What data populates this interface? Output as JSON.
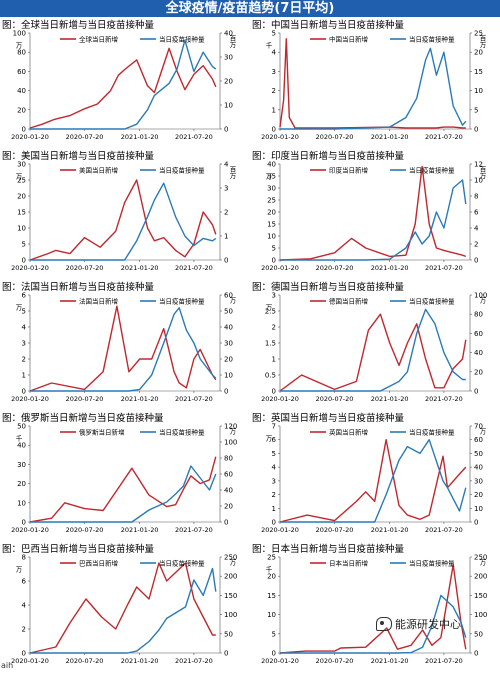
{
  "header": {
    "title": "全球疫情/疫苗趋势(7日平均)"
  },
  "footer": {
    "text": "aih"
  },
  "watermark": {
    "text": "能源研发中心"
  },
  "colors": {
    "cases": "#c0282e",
    "vaccine": "#2a7ab8",
    "banner": "#1f5fae"
  },
  "x_ticks": [
    "2020-01-20",
    "2020-07-20",
    "2021-01-20",
    "2021-07-20"
  ],
  "chart_data": [
    {
      "type": "line",
      "title": "图：全球当日新增与当日疫苗接种量",
      "left_unit": "万",
      "right_unit": "百万",
      "ylim_left": [
        0,
        100
      ],
      "yticks_left": [
        0,
        20,
        40,
        60,
        80,
        100
      ],
      "ylim_right": [
        0,
        40
      ],
      "yticks_right": [
        0,
        10,
        20,
        30,
        40
      ],
      "x": [
        "2020-01-20",
        "2020-03-01",
        "2020-04-10",
        "2020-06-01",
        "2020-07-20",
        "2020-09-01",
        "2020-10-15",
        "2020-11-10",
        "2020-12-01",
        "2021-01-10",
        "2021-02-15",
        "2021-03-10",
        "2021-04-28",
        "2021-05-25",
        "2021-06-20",
        "2021-07-20",
        "2021-08-20",
        "2021-09-20",
        "2021-10-01"
      ],
      "series": [
        {
          "name": "全球当日新增",
          "axis": "left",
          "color": "#c0282e",
          "values": [
            1,
            5,
            10,
            14,
            21,
            26,
            40,
            56,
            62,
            72,
            45,
            38,
            84,
            60,
            41,
            57,
            66,
            52,
            44
          ]
        },
        {
          "name": "当日疫苗接种量",
          "axis": "right",
          "color": "#2a7ab8",
          "values": [
            0,
            0,
            0,
            0,
            0,
            0,
            0,
            0,
            0,
            2,
            8,
            14,
            19,
            25,
            37,
            24,
            32,
            26,
            25
          ]
        }
      ]
    },
    {
      "type": "line",
      "title": "图：中国当日新增与当日疫苗接种量",
      "left_unit": "千",
      "right_unit": "百万",
      "ylim_left": [
        0,
        5
      ],
      "yticks_left": [
        0,
        1,
        2,
        3,
        4,
        5
      ],
      "ylim_right": [
        0,
        25
      ],
      "yticks_right": [
        0,
        5,
        10,
        15,
        20,
        25
      ],
      "x": [
        "2020-01-20",
        "2020-02-01",
        "2020-02-10",
        "2020-02-20",
        "2020-03-10",
        "2020-07-20",
        "2021-01-20",
        "2021-03-15",
        "2021-04-20",
        "2021-05-20",
        "2021-06-05",
        "2021-06-25",
        "2021-07-20",
        "2021-08-20",
        "2021-09-20",
        "2021-10-01"
      ],
      "series": [
        {
          "name": "中国当日新增",
          "axis": "left",
          "color": "#c0282e",
          "values": [
            0.1,
            1.5,
            4.7,
            0.6,
            0.05,
            0.05,
            0.1,
            0.05,
            0.05,
            0.05,
            0.05,
            0.05,
            0.1,
            0.1,
            0.05,
            0.05
          ]
        },
        {
          "name": "当日疫苗接种量",
          "axis": "right",
          "color": "#2a7ab8",
          "values": [
            0,
            0,
            0,
            0,
            0,
            0,
            0.5,
            3,
            8,
            18,
            21,
            14,
            20,
            6,
            1,
            2
          ]
        }
      ]
    },
    {
      "type": "line",
      "title": "图：美国当日新增与当日疫苗接种量",
      "left_unit": "万",
      "right_unit": "百万",
      "ylim_left": [
        0,
        30
      ],
      "yticks_left": [
        0,
        5,
        10,
        15,
        20,
        25,
        30
      ],
      "ylim_right": [
        0,
        4
      ],
      "yticks_right": [
        0,
        1,
        2,
        3,
        4
      ],
      "x": [
        "2020-01-20",
        "2020-03-20",
        "2020-04-15",
        "2020-06-01",
        "2020-07-20",
        "2020-09-10",
        "2020-11-01",
        "2020-12-01",
        "2021-01-10",
        "2021-02-15",
        "2021-03-10",
        "2021-04-10",
        "2021-05-20",
        "2021-06-20",
        "2021-07-20",
        "2021-08-20",
        "2021-09-20",
        "2021-10-01"
      ],
      "series": [
        {
          "name": "美国当日新增",
          "axis": "left",
          "color": "#c0282e",
          "values": [
            0,
            2,
            3,
            2,
            7,
            4,
            9,
            18,
            25,
            10,
            6,
            7,
            3,
            1,
            5,
            15,
            11,
            8
          ]
        },
        {
          "name": "当日疫苗接种量",
          "axis": "right",
          "color": "#2a7ab8",
          "values": [
            0,
            0,
            0,
            0,
            0,
            0,
            0,
            0,
            0.8,
            1.8,
            2.5,
            3.2,
            1.8,
            1,
            0.6,
            0.9,
            0.8,
            0.9
          ]
        }
      ]
    },
    {
      "type": "line",
      "title": "图：印度当日新增与当日疫苗接种量",
      "left_unit": "万",
      "right_unit": "百万",
      "ylim_left": [
        0,
        40
      ],
      "yticks_left": [
        0,
        5,
        10,
        15,
        20,
        25,
        30,
        35,
        40
      ],
      "ylim_right": [
        0,
        12
      ],
      "yticks_right": [
        0,
        2,
        4,
        6,
        8,
        10,
        12
      ],
      "x": [
        "2020-01-20",
        "2020-05-01",
        "2020-07-20",
        "2020-09-15",
        "2020-11-01",
        "2021-01-20",
        "2021-03-15",
        "2021-04-15",
        "2021-05-08",
        "2021-06-01",
        "2021-06-25",
        "2021-07-20",
        "2021-08-20",
        "2021-09-20",
        "2021-10-01"
      ],
      "series": [
        {
          "name": "印度当日新增",
          "axis": "left",
          "color": "#c0282e",
          "values": [
            0,
            0.5,
            3,
            9,
            5,
            1.5,
            2,
            15,
            39,
            15,
            5,
            4,
            3,
            2,
            1.5
          ]
        },
        {
          "name": "当日疫苗接种量",
          "axis": "right",
          "color": "#2a7ab8",
          "values": [
            0,
            0,
            0,
            0,
            0,
            0.1,
            1.5,
            3.5,
            2,
            3,
            6,
            4,
            9,
            10,
            7
          ]
        }
      ]
    },
    {
      "type": "line",
      "title": "图：法国当日新增与当日疫苗接种量",
      "left_unit": "万",
      "right_unit": "万",
      "ylim_left": [
        0,
        6
      ],
      "yticks_left": [
        0,
        1,
        2,
        3,
        4,
        5,
        6
      ],
      "ylim_right": [
        0,
        60
      ],
      "yticks_right": [
        0,
        10,
        20,
        30,
        40,
        50,
        60
      ],
      "x": [
        "2020-01-20",
        "2020-04-01",
        "2020-07-20",
        "2020-09-20",
        "2020-11-05",
        "2020-12-15",
        "2021-01-20",
        "2021-03-01",
        "2021-04-10",
        "2021-05-15",
        "2021-06-01",
        "2021-06-25",
        "2021-07-20",
        "2021-08-10",
        "2021-09-20",
        "2021-10-01"
      ],
      "series": [
        {
          "name": "法国当日新增",
          "axis": "left",
          "color": "#c0282e",
          "values": [
            0,
            0.5,
            0.1,
            1.2,
            5.3,
            1.2,
            2,
            2,
            3.9,
            1.2,
            0.5,
            0.2,
            2,
            2.6,
            1,
            0.7
          ]
        },
        {
          "name": "当日疫苗接种量",
          "axis": "right",
          "color": "#2a7ab8",
          "values": [
            0,
            0,
            0,
            0,
            0,
            0,
            1,
            10,
            30,
            48,
            52,
            38,
            30,
            20,
            10,
            8
          ]
        }
      ]
    },
    {
      "type": "line",
      "title": "图：德国当日新增与当日疫苗接种量",
      "left_unit": "万",
      "right_unit": "万",
      "ylim_left": [
        0,
        3
      ],
      "yticks_left": [
        0,
        0.5,
        1,
        1.5,
        2,
        2.5,
        3
      ],
      "ylim_right": [
        0,
        100
      ],
      "yticks_right": [
        0,
        20,
        40,
        60,
        80,
        100
      ],
      "x": [
        "2020-01-20",
        "2020-04-01",
        "2020-07-20",
        "2020-10-01",
        "2020-11-10",
        "2020-12-20",
        "2021-01-20",
        "2021-02-20",
        "2021-03-20",
        "2021-04-20",
        "2021-05-20",
        "2021-06-20",
        "2021-07-20",
        "2021-08-20",
        "2021-09-20",
        "2021-10-01"
      ],
      "series": [
        {
          "name": "德国当日新增",
          "axis": "left",
          "color": "#c0282e",
          "values": [
            0,
            0.5,
            0.05,
            0.3,
            1.9,
            2.4,
            1.5,
            0.8,
            1.5,
            2.1,
            1,
            0.1,
            0.1,
            0.7,
            1,
            1.6
          ]
        },
        {
          "name": "当日疫苗接种量",
          "axis": "right",
          "color": "#2a7ab8",
          "values": [
            0,
            0,
            0,
            0,
            0,
            0,
            5,
            10,
            20,
            60,
            85,
            70,
            40,
            20,
            12,
            12
          ]
        }
      ]
    },
    {
      "type": "line",
      "title": "图：俄罗斯当日新增与当日疫苗接种量",
      "left_unit": "千",
      "right_unit": "万",
      "ylim_left": [
        0,
        50
      ],
      "yticks_left": [
        0,
        10,
        20,
        30,
        40,
        50
      ],
      "ylim_right": [
        0,
        120
      ],
      "yticks_right": [
        0,
        20,
        40,
        60,
        80,
        100,
        120
      ],
      "x": [
        "2020-01-20",
        "2020-04-01",
        "2020-05-15",
        "2020-07-20",
        "2020-09-20",
        "2020-12-25",
        "2021-02-20",
        "2021-04-20",
        "2021-05-20",
        "2021-06-15",
        "2021-07-10",
        "2021-08-10",
        "2021-09-10",
        "2021-10-01"
      ],
      "series": [
        {
          "name": "俄罗斯当日新增",
          "axis": "left",
          "color": "#c0282e",
          "values": [
            0,
            2,
            10,
            7,
            6,
            28,
            14,
            8,
            9,
            17,
            24,
            20,
            22,
            34
          ]
        },
        {
          "name": "当日疫苗接种量",
          "axis": "right",
          "color": "#2a7ab8",
          "values": [
            0,
            0,
            0,
            0,
            0,
            0,
            15,
            25,
            35,
            45,
            70,
            55,
            40,
            60
          ]
        }
      ]
    },
    {
      "type": "line",
      "title": "图：英国当日新增与当日疫苗接种量",
      "left_unit": "万",
      "right_unit": "万",
      "ylim_left": [
        0,
        7
      ],
      "yticks_left": [
        0,
        1,
        2,
        3,
        4,
        5,
        6,
        7
      ],
      "ylim_right": [
        0,
        70
      ],
      "yticks_right": [
        0,
        10,
        20,
        30,
        40,
        50,
        60,
        70
      ],
      "x": [
        "2020-01-20",
        "2020-04-20",
        "2020-07-20",
        "2020-10-01",
        "2020-11-01",
        "2020-12-01",
        "2021-01-08",
        "2021-02-20",
        "2021-03-20",
        "2021-05-01",
        "2021-06-01",
        "2021-07-17",
        "2021-08-01",
        "2021-09-10",
        "2021-10-01"
      ],
      "series": [
        {
          "name": "英国当日新增",
          "axis": "left",
          "color": "#c0282e",
          "values": [
            0,
            0.5,
            0.1,
            1.5,
            2.2,
            1.5,
            6,
            1.2,
            0.5,
            0.2,
            0.5,
            4.8,
            2.5,
            3.5,
            4
          ]
        },
        {
          "name": "当日疫苗接种量",
          "axis": "right",
          "color": "#2a7ab8",
          "values": [
            0,
            0,
            0,
            0,
            0,
            0,
            20,
            45,
            55,
            50,
            60,
            30,
            25,
            8,
            25
          ]
        }
      ]
    },
    {
      "type": "line",
      "title": "图：巴西当日新增与当日疫苗接种量",
      "left_unit": "万",
      "right_unit": "万",
      "ylim_left": [
        0,
        8
      ],
      "yticks_left": [
        0,
        2,
        4,
        6,
        8
      ],
      "ylim_right": [
        0,
        250
      ],
      "yticks_right": [
        0,
        50,
        100,
        150,
        200,
        250
      ],
      "x": [
        "2020-01-20",
        "2020-04-15",
        "2020-06-01",
        "2020-07-25",
        "2020-09-15",
        "2020-11-01",
        "2020-12-10",
        "2021-01-10",
        "2021-02-20",
        "2021-03-25",
        "2021-04-20",
        "2021-06-22",
        "2021-07-20",
        "2021-08-20",
        "2021-09-20",
        "2021-10-01"
      ],
      "series": [
        {
          "name": "巴西当日新增",
          "axis": "left",
          "color": "#c0282e",
          "values": [
            0,
            0.5,
            2.5,
            4.5,
            3,
            2,
            4,
            5.5,
            4.5,
            7.5,
            6,
            7.5,
            4.5,
            3,
            1.5,
            1.5
          ]
        },
        {
          "name": "当日疫苗接种量",
          "axis": "right",
          "color": "#2a7ab8",
          "values": [
            0,
            0,
            0,
            0,
            0,
            0,
            0,
            5,
            30,
            60,
            90,
            120,
            190,
            150,
            220,
            160
          ]
        }
      ]
    },
    {
      "type": "line",
      "title": "图：日本当日新增与当日疫苗接种量",
      "left_unit": "千",
      "right_unit": "万",
      "ylim_left": [
        0,
        25
      ],
      "yticks_left": [
        0,
        5,
        10,
        15,
        20,
        25
      ],
      "ylim_right": [
        0,
        250
      ],
      "yticks_right": [
        0,
        50,
        100,
        150,
        200,
        250
      ],
      "x": [
        "2020-01-20",
        "2020-04-15",
        "2020-07-20",
        "2020-08-10",
        "2020-11-01",
        "2021-01-10",
        "2021-02-15",
        "2021-04-01",
        "2021-05-10",
        "2021-06-10",
        "2021-07-10",
        "2021-08-20",
        "2021-09-15",
        "2021-10-01"
      ],
      "series": [
        {
          "name": "日本当日新增",
          "axis": "left",
          "color": "#c0282e",
          "values": [
            0,
            0.5,
            0.5,
            1.3,
            1.5,
            6.5,
            1,
            2,
            6,
            2,
            4,
            23,
            8,
            1
          ]
        },
        {
          "name": "当日疫苗接种量",
          "axis": "right",
          "color": "#2a7ab8",
          "values": [
            0,
            0,
            0,
            0,
            0,
            0,
            0,
            1,
            15,
            70,
            150,
            120,
            80,
            40
          ]
        }
      ]
    }
  ]
}
